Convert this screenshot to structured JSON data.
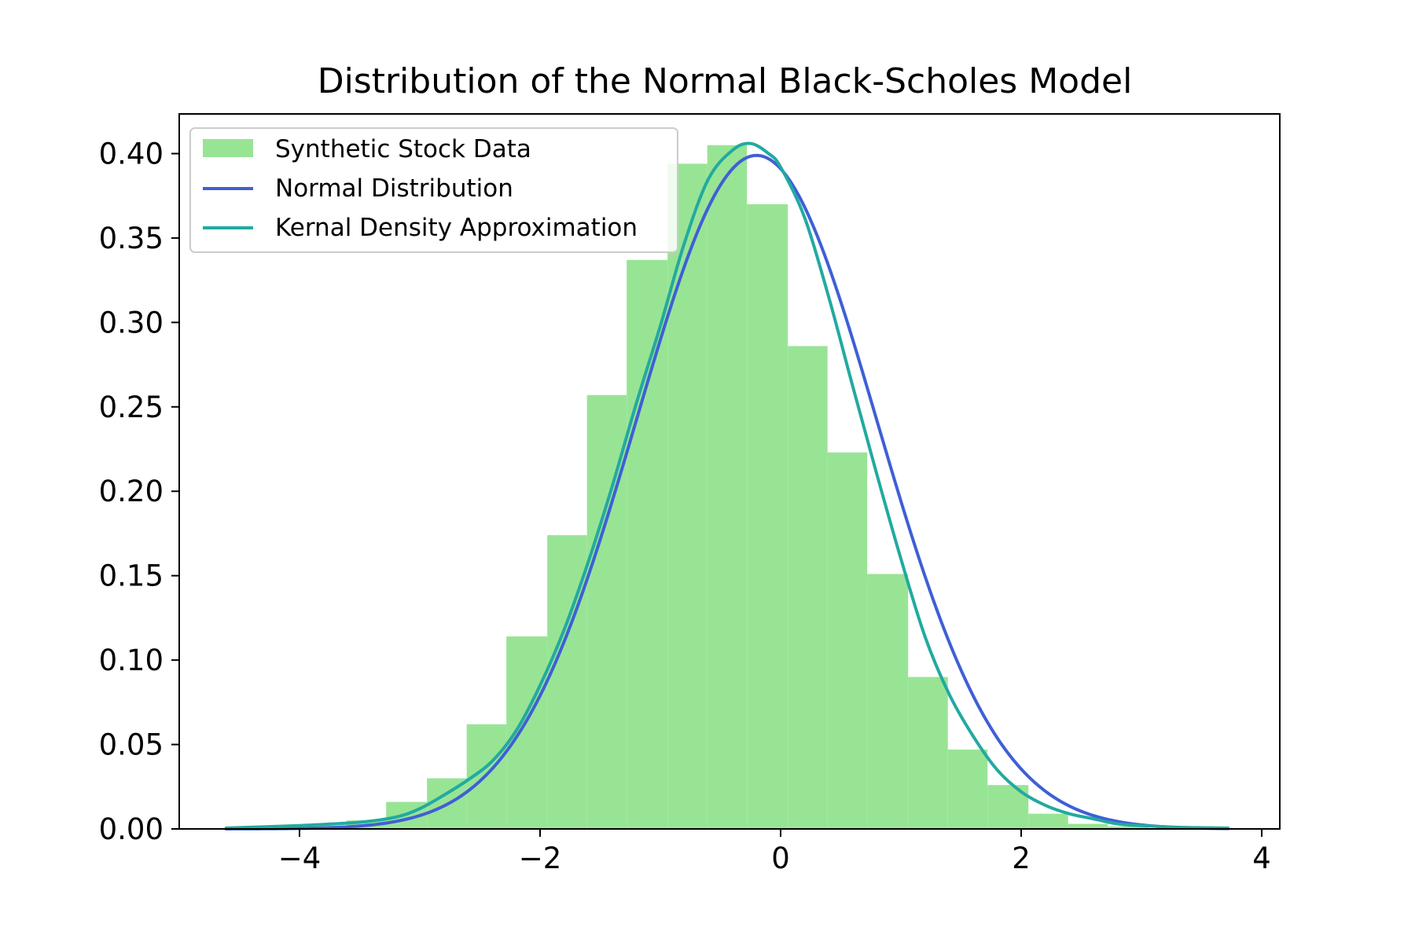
{
  "chart_data": {
    "type": "bar",
    "title": "Distribution of the Normal Black-Scholes Model",
    "xlabel": "",
    "ylabel": "",
    "xlim": [
      -5.0,
      4.15
    ],
    "ylim": [
      0,
      0.4235
    ],
    "x_ticks": [
      -4,
      -2,
      0,
      2,
      4
    ],
    "x_tick_labels": [
      "−4",
      "−2",
      "0",
      "2",
      "4"
    ],
    "y_ticks": [
      0,
      0.05,
      0.1,
      0.15,
      0.2,
      0.25,
      0.3,
      0.35,
      0.4
    ],
    "y_tick_labels": [
      "0.00",
      "0.05",
      "0.10",
      "0.15",
      "0.20",
      "0.25",
      "0.30",
      "0.35",
      "0.40"
    ],
    "legend_position": "top-left",
    "grid": false,
    "colors": {
      "histogram": "#98e495",
      "normal": "#3f5fd6",
      "kde": "#22aaa0"
    },
    "series": [
      {
        "name": "Synthetic Stock Data",
        "kind": "histogram",
        "bin_edges": [
          -4.61,
          -4.27,
          -3.94,
          -3.61,
          -3.28,
          -2.94,
          -2.61,
          -2.28,
          -1.94,
          -1.61,
          -1.28,
          -0.94,
          -0.61,
          -0.28,
          0.06,
          0.39,
          0.72,
          1.06,
          1.39,
          1.72,
          2.06,
          2.39,
          2.72,
          3.06,
          3.39,
          3.72
        ],
        "values": [
          0.0005,
          0.001,
          0.002,
          0.005,
          0.016,
          0.03,
          0.062,
          0.114,
          0.174,
          0.257,
          0.337,
          0.394,
          0.405,
          0.37,
          0.286,
          0.223,
          0.151,
          0.09,
          0.047,
          0.026,
          0.009,
          0.003,
          0.0015,
          0.0005,
          0.0002
        ]
      },
      {
        "name": "Normal Distribution",
        "kind": "line",
        "mean": -0.2,
        "std": 1.0,
        "x_range": [
          -4.61,
          3.72
        ]
      },
      {
        "name": "Kernal Density Approximation",
        "kind": "line",
        "x": [
          -4.61,
          -4.0,
          -3.5,
          -3.2,
          -3.0,
          -2.8,
          -2.6,
          -2.4,
          -2.2,
          -2.0,
          -1.8,
          -1.6,
          -1.4,
          -1.2,
          -1.0,
          -0.8,
          -0.6,
          -0.4,
          -0.25,
          -0.1,
          0.0,
          0.2,
          0.4,
          0.6,
          0.8,
          1.0,
          1.2,
          1.4,
          1.6,
          1.8,
          2.0,
          2.2,
          2.4,
          2.6,
          2.8,
          3.0,
          3.3,
          3.72
        ],
        "y": [
          0.0005,
          0.002,
          0.004,
          0.007,
          0.012,
          0.02,
          0.029,
          0.04,
          0.058,
          0.085,
          0.118,
          0.158,
          0.203,
          0.252,
          0.298,
          0.347,
          0.385,
          0.402,
          0.406,
          0.4,
          0.392,
          0.362,
          0.315,
          0.262,
          0.21,
          0.16,
          0.114,
          0.08,
          0.055,
          0.035,
          0.022,
          0.014,
          0.009,
          0.006,
          0.003,
          0.002,
          0.001,
          0.0005
        ]
      }
    ]
  }
}
